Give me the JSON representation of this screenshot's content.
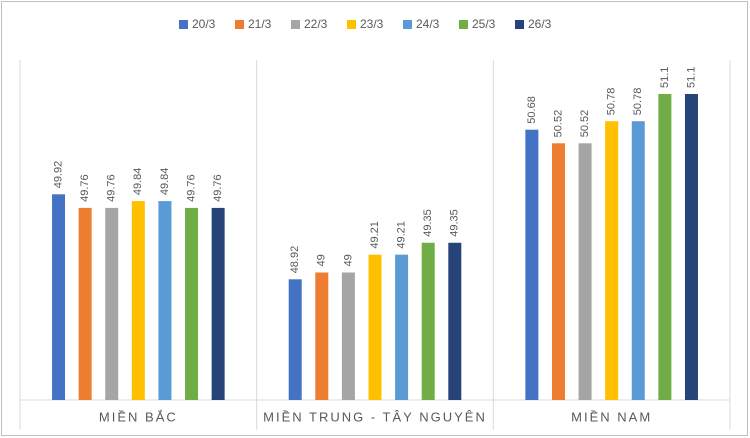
{
  "chart_data": {
    "type": "bar",
    "categories": [
      "MIỀN BẮC",
      "MIỀN TRUNG - TÂY NGUYÊN",
      "MIỀN NAM"
    ],
    "series": [
      {
        "name": "20/3",
        "color": "#4472c4",
        "values": [
          49.92,
          48.92,
          50.68
        ]
      },
      {
        "name": "21/3",
        "color": "#ed7d31",
        "values": [
          49.76,
          49,
          50.52
        ]
      },
      {
        "name": "22/3",
        "color": "#a5a5a5",
        "values": [
          49.76,
          49,
          50.52
        ]
      },
      {
        "name": "23/3",
        "color": "#ffc000",
        "values": [
          49.84,
          49.21,
          50.78
        ]
      },
      {
        "name": "24/3",
        "color": "#5b9bd5",
        "values": [
          49.84,
          49.21,
          50.78
        ]
      },
      {
        "name": "25/3",
        "color": "#70ad47",
        "values": [
          49.76,
          49.35,
          51.1
        ]
      },
      {
        "name": "26/3",
        "color": "#264478",
        "values": [
          49.76,
          49.35,
          51.1
        ]
      }
    ],
    "ylim": [
      47.5,
      51.5
    ],
    "legend": "top"
  }
}
